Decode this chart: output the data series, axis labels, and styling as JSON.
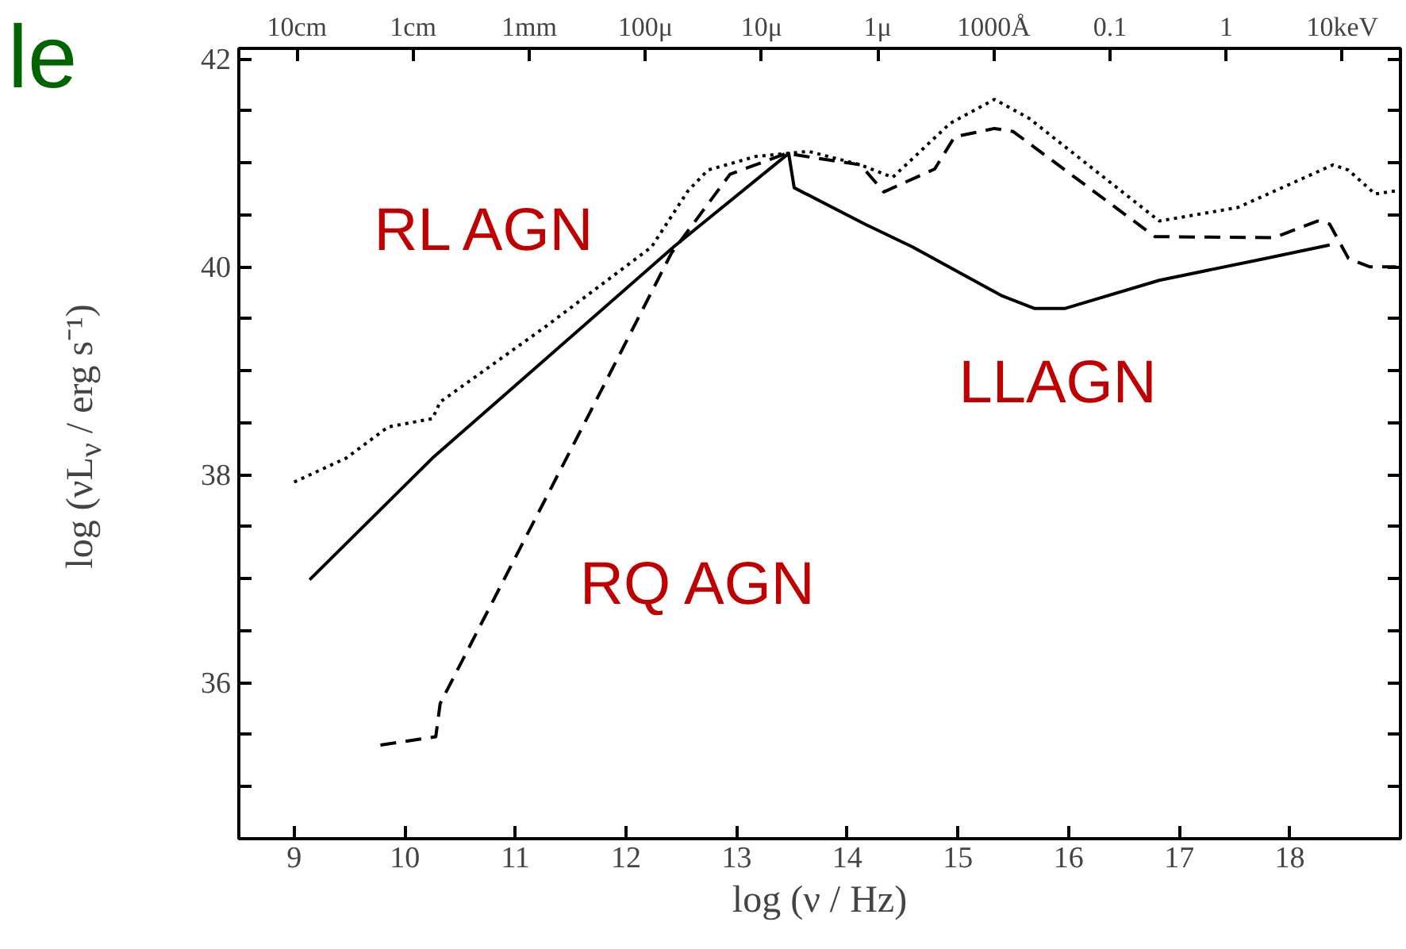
{
  "chart_data": {
    "type": "line",
    "xlabel": "log (ν / Hz)",
    "ylabel": "log (νL$_{ν}$ / erg s⁻¹)",
    "xlim": [
      8.5,
      19.0
    ],
    "ylim": [
      34.5,
      42.1
    ],
    "xticks": [
      9,
      10,
      11,
      12,
      13,
      14,
      15,
      16,
      17,
      18
    ],
    "yticks": [
      {
        "value": 35,
        "label": null
      },
      {
        "value": 35.5,
        "label": null
      },
      36,
      {
        "value": 36.5,
        "label": null
      },
      {
        "value": 37,
        "label": null
      },
      {
        "value": 37.5,
        "label": null
      },
      38,
      {
        "value": 38.5,
        "label": null
      },
      {
        "value": 39,
        "label": null
      },
      {
        "value": 39.5,
        "label": null
      },
      40,
      {
        "value": 40.5,
        "label": null
      },
      {
        "value": 41,
        "label": null
      },
      {
        "value": 41.5,
        "label": null
      },
      42
    ],
    "grid": false,
    "series": [
      {
        "color": "#000000",
        "line_style": "solid",
        "x": [
          9.14,
          10.25,
          12.44,
          13.47,
          13.52,
          14.16,
          14.59,
          15.4,
          15.69,
          15.97,
          16.82,
          17.78,
          18.36
        ],
        "values": [
          36.99,
          38.16,
          40.2,
          41.09,
          40.76,
          40.41,
          40.19,
          39.72,
          39.6,
          39.6,
          39.87,
          40.08,
          40.21
        ]
      },
      {
        "color": "#000000",
        "line_style": "dotted",
        "x": [
          9.0,
          9.47,
          9.85,
          10.25,
          10.32,
          11.28,
          12.23,
          12.56,
          12.74,
          13.17,
          13.65,
          14.12,
          14.41,
          14.93,
          15.33,
          15.64,
          16.82,
          17.53,
          18.39,
          18.53,
          18.77,
          18.96
        ],
        "values": [
          37.93,
          38.16,
          38.46,
          38.54,
          38.7,
          39.43,
          40.19,
          40.73,
          40.93,
          41.06,
          41.11,
          40.98,
          40.86,
          41.38,
          41.61,
          41.43,
          40.44,
          40.57,
          40.98,
          40.93,
          40.7,
          40.73
        ]
      },
      {
        "color": "#000000",
        "line_style": "dashed",
        "x": [
          9.78,
          10.28,
          10.32,
          11.66,
          12.41,
          12.94,
          13.45,
          14.12,
          14.33,
          14.79,
          14.97,
          15.33,
          15.5,
          16.78,
          17.86,
          18.25,
          18.36,
          18.53,
          18.72,
          18.96
        ],
        "values": [
          35.4,
          35.48,
          35.8,
          38.57,
          40.13,
          40.89,
          41.09,
          40.98,
          40.72,
          40.94,
          41.25,
          41.33,
          41.3,
          40.29,
          40.28,
          40.44,
          40.41,
          40.08,
          40.0,
          40.0
        ]
      }
    ],
    "annotations": [
      "le",
      "RL AGN",
      "RQ AGN",
      "LLAGN",
      "10cm",
      "1cm",
      "1mm",
      "100μ",
      "10μ",
      "1μ",
      "1000Å",
      "0.1",
      "1",
      "10keV"
    ]
  }
}
